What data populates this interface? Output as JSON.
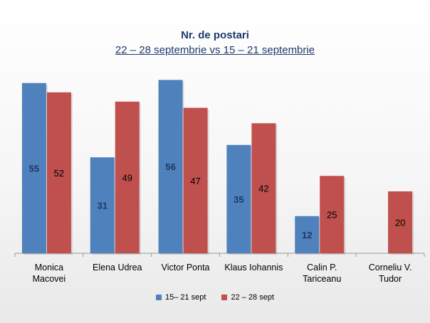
{
  "chart_data": {
    "type": "bar",
    "title": "Nr. de postari",
    "subtitle": "22 – 28 septembrie  vs  15 – 21 septembrie",
    "categories": [
      [
        "Monica",
        "Macovei"
      ],
      [
        "Elena Udrea"
      ],
      [
        "Victor Ponta"
      ],
      [
        "Klaus Iohannis"
      ],
      [
        "Calin P.",
        "Tariceanu"
      ],
      [
        "Corneliu V.",
        "Tudor"
      ]
    ],
    "series": [
      {
        "name": "15– 21 sept",
        "color": "#4f81bd",
        "label_color": "#1f3864",
        "values": [
          55,
          31,
          56,
          35,
          12,
          null
        ]
      },
      {
        "name": "22 – 28 sept",
        "color": "#c0504d",
        "label_color": "#000000",
        "values": [
          52,
          49,
          47,
          42,
          25,
          20
        ]
      }
    ],
    "ylim": [
      0,
      57
    ],
    "grid": false,
    "legend_position": "bottom"
  }
}
